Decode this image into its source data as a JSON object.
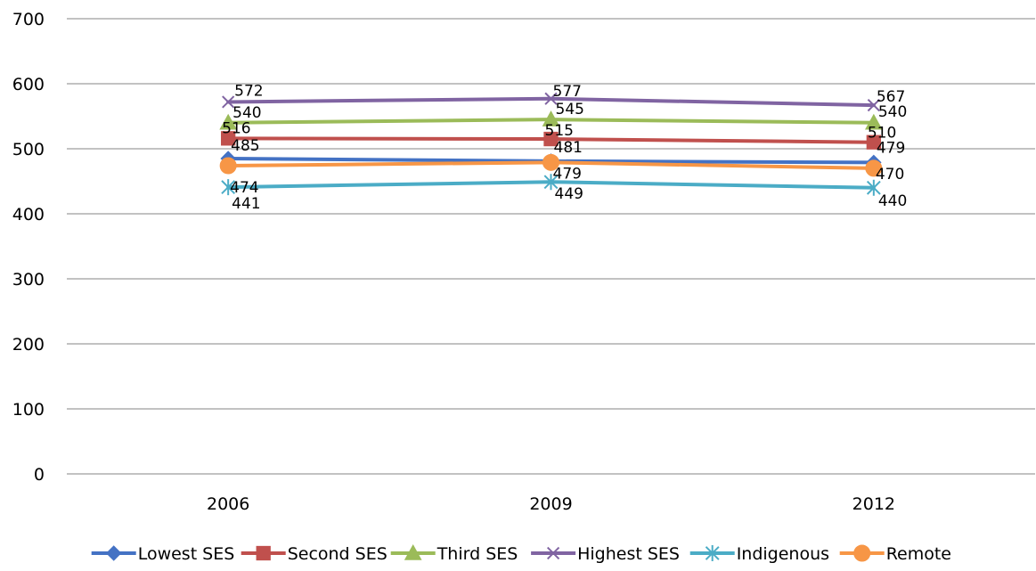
{
  "chart_data": {
    "type": "line",
    "categories": [
      "2006",
      "2009",
      "2012"
    ],
    "ylim": [
      0,
      700
    ],
    "yticks": [
      0,
      100,
      200,
      300,
      400,
      500,
      600,
      700
    ],
    "grid": true,
    "legend_position": "bottom",
    "series": [
      {
        "name": "Lowest SES",
        "values": [
          485,
          481,
          479
        ],
        "color": "#4472C4",
        "marker": "diamond"
      },
      {
        "name": "Second SES",
        "values": [
          516,
          515,
          510
        ],
        "color": "#C0504D",
        "marker": "square"
      },
      {
        "name": "Third SES",
        "values": [
          540,
          545,
          540
        ],
        "color": "#9BBB59",
        "marker": "triangle"
      },
      {
        "name": "Highest SES",
        "values": [
          572,
          577,
          567
        ],
        "color": "#8064A2",
        "marker": "x"
      },
      {
        "name": "Indigenous",
        "values": [
          441,
          449,
          440
        ],
        "color": "#4BACC6",
        "marker": "star"
      },
      {
        "name": "Remote",
        "values": [
          474,
          479,
          470
        ],
        "color": "#F79646",
        "marker": "circle"
      }
    ]
  }
}
